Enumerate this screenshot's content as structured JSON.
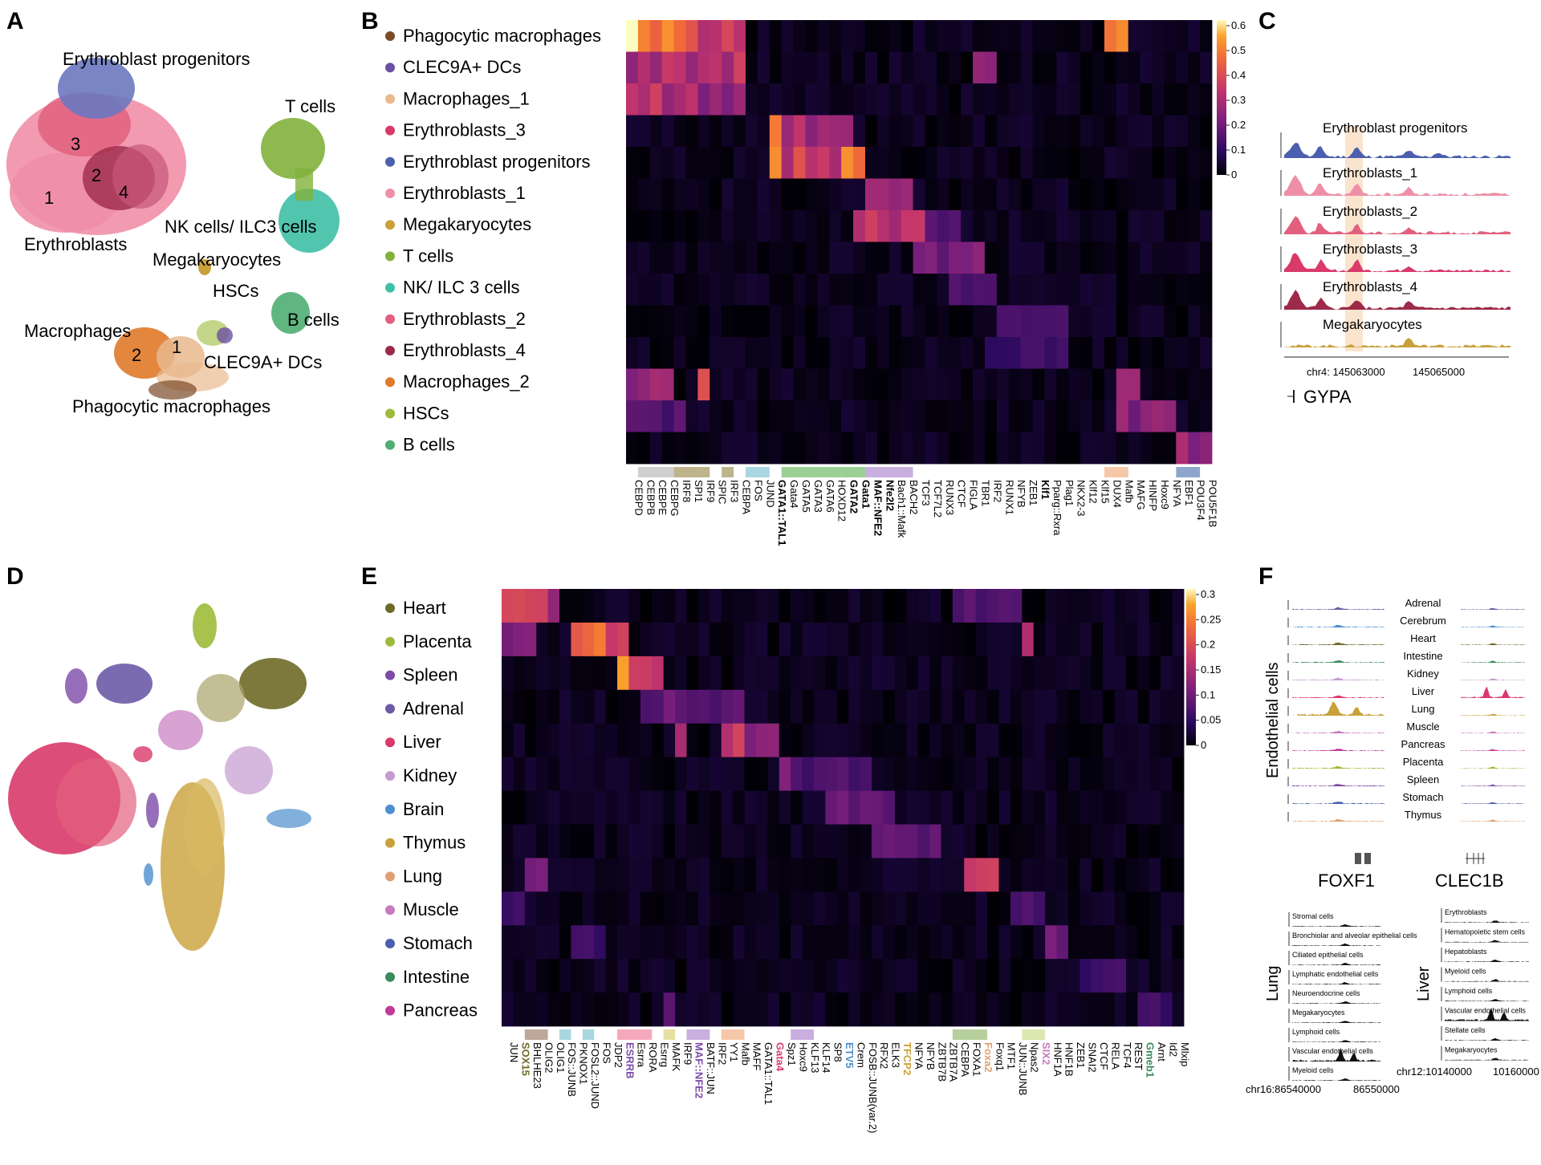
{
  "panels": {
    "A": "A",
    "B": "B",
    "C": "C",
    "D": "D",
    "E": "E",
    "F": "F"
  },
  "panelA": {
    "labels": [
      "Erythroblast progenitors",
      "T cells",
      "NK cells/ ILC3 cells",
      "Erythroblasts",
      "Megakaryocytes",
      "HSCs",
      "B cells",
      "Macrophages",
      "CLEC9A+ DCs",
      "Phagocytic macrophages"
    ],
    "numbers": [
      "3",
      "2",
      "4",
      "1",
      "2",
      "1"
    ]
  },
  "panelB": {
    "rows": [
      "Phagocytic macrophages",
      "CLEC9A+ DCs",
      "Macrophages_1",
      "Erythroblasts_3",
      "Erythroblast progenitors",
      "Erythroblasts_1",
      "Megakaryocytes",
      "T cells",
      "NK/ ILC 3 cells",
      "Erythroblasts_2",
      "Erythroblasts_4",
      "Macrophages_2",
      "HSCs",
      "B cells"
    ],
    "row_colors": [
      "#7b4a28",
      "#6b4fa0",
      "#e9b98e",
      "#d93a6a",
      "#4b5fae",
      "#ef8fa7",
      "#c9a13a",
      "#82b13c",
      "#3fbfa6",
      "#e2607e",
      "#9c2a48",
      "#e07a2a",
      "#9dbb3a",
      "#4fae72"
    ],
    "genes": [
      "CEBPD",
      "CEBPB",
      "CEBPE",
      "CEBPG",
      "IRF8",
      "SPI1",
      "IRF9",
      "SPIC",
      "IRF3",
      "CEBPA",
      "FOS",
      "JUND",
      "GATA1::TAL1",
      "Gata4",
      "GATA5",
      "GATA3",
      "GATA6",
      "HOXD12",
      "GATA2",
      "Gata1",
      "MAF::NFE2",
      "Nfe2l2",
      "Bach1::Mafk",
      "BACH2",
      "TCF3",
      "TCF7L2",
      "RUNX3",
      "CTCF",
      "FIGLA",
      "TBR1",
      "IRF2",
      "RUNX1",
      "NFYB",
      "ZEB1",
      "Klf1",
      "Pparg::Rxra",
      "Plag1",
      "NKX2-3",
      "Klf12",
      "Klf15",
      "DUX4",
      "Mafb",
      "MAFG",
      "HINFP",
      "Hoxc9",
      "NFYA",
      "EBF1",
      "POU3F4",
      "POU5F1B"
    ],
    "bold_genes": [
      "GATA1::TAL1",
      "GATA2",
      "Gata1",
      "MAF::NFE2",
      "Nfe2l2",
      "Klf1"
    ],
    "group_bar_colors": [
      "#d0d0d0",
      "#bdb48c",
      "#bdb48c",
      "#bdb48c",
      "#a9d6e0",
      "#9ccf94",
      "#9ccf94",
      "#c9aee0",
      "#f6c7a8",
      "#8fa6cc"
    ],
    "colorbar": {
      "ticks": [
        "0.6",
        "0.5",
        "0.4",
        "0.3",
        "0.2",
        "0.1",
        "0"
      ]
    }
  },
  "panelC": {
    "tracks": [
      "Erythroblast progenitors",
      "Erythroblasts_1",
      "Erythroblasts_2",
      "Erythroblasts_3",
      "Erythroblasts_4",
      "Megakaryocytes"
    ],
    "track_colors": [
      "#4b5fae",
      "#ef8fa7",
      "#e2607e",
      "#d93a6a",
      "#9c2a48",
      "#c9a13a"
    ],
    "axis": [
      "chr4: 145063000",
      "145065000"
    ],
    "gene": "GYPA"
  },
  "panelE": {
    "rows": [
      "Heart",
      "Placenta",
      "Spleen",
      "Adrenal",
      "Liver",
      "Kidney",
      "Brain",
      "Thymus",
      "Lung",
      "Muscle",
      "Stomach",
      "Intestine",
      "Pancreas"
    ],
    "row_colors": [
      "#6f6a28",
      "#9dbb3a",
      "#7d4aa8",
      "#6b5ba8",
      "#d93a6a",
      "#c49ad0",
      "#4d8fcf",
      "#c9a13a",
      "#e0a070",
      "#c77ac0",
      "#4b5fae",
      "#3a8a5a",
      "#c23a98"
    ],
    "genes": [
      "JUN",
      "SOX15",
      "BHLHE23",
      "OLIG2",
      "OLIG1",
      "FOS::JUNB",
      "PKNOX1",
      "FOSL2::JUND",
      "FOS",
      "JDP2",
      "ESRRB",
      "Esrra",
      "RORA",
      "Esrrg",
      "MAFK",
      "IRF9",
      "MAF::NFE2",
      "BATF::JUN",
      "IRF2",
      "YY1",
      "Mafb",
      "MAFF",
      "GATA1::TAL1",
      "Gata4",
      "Spz1",
      "Hoxc9",
      "KLF13",
      "KLF14",
      "SP8",
      "ETV5",
      "Crem",
      "FOSB::JUNB(var.2)",
      "RFX2",
      "ELK3",
      "TFCP2",
      "NFYA",
      "NFYB",
      "ZBTB7B",
      "ZBTB7A",
      "CEBPA",
      "FOXA1",
      "Foxa2",
      "Foxq1",
      "MTF1",
      "JUN::JUNB",
      "Npas2",
      "SIX2",
      "HNF1A",
      "HNF1B",
      "ZEB1",
      "SNAI2",
      "CTCF",
      "RELA",
      "TCF4",
      "REST",
      "Gmeb1",
      "Arnt",
      "Id2",
      "Mlxip"
    ],
    "gene_colors": {
      "SOX15": "#6f6a28",
      "ESRRB": "#7d4aa8",
      "MAF::NFE2": "#7d4aa8",
      "Gata4": "#d93a6a",
      "ETV5": "#4d8fcf",
      "TFCP2": "#c9a13a",
      "Foxa2": "#e0a070",
      "SIX2": "#c77ac0",
      "Gmeb1": "#3a8a5a"
    },
    "bold_genes": [
      "SOX15",
      "ESRRB",
      "MAF::NFE2",
      "Gata4",
      "ETV5",
      "TFCP2",
      "Foxa2",
      "SIX2",
      "Gmeb1"
    ],
    "group_bar_colors": [
      "#bda89a",
      "#a9d6e0",
      "#a9d6e0",
      "#f5a8bc",
      "#e6e0a0",
      "#c9aee0",
      "#f6c7a8",
      "#c9aee0",
      "#b7cf9c",
      "#dbe8b0"
    ],
    "colorbar": {
      "ticks": [
        "0.3",
        "0.25",
        "0.2",
        "0.15",
        "0.1",
        "0.05",
        "0"
      ]
    }
  },
  "panelF": {
    "side_label": "Endothelial cells",
    "tissues": [
      "Adrenal",
      "Cerebrum",
      "Heart",
      "Intestine",
      "Kidney",
      "Liver",
      "Lung",
      "Muscle",
      "Pancreas",
      "Placenta",
      "Spleen",
      "Stomach",
      "Thymus"
    ],
    "tissue_colors": [
      "#6b5ba8",
      "#4d8fcf",
      "#6f6a28",
      "#3a8a5a",
      "#c49ad0",
      "#d93a6a",
      "#c9a13a",
      "#c77ac0",
      "#c23a98",
      "#9dbb3a",
      "#7d4aa8",
      "#4b5fae",
      "#e0a070"
    ],
    "genes": [
      "FOXF1",
      "CLEC1B"
    ],
    "lung": {
      "label": "Lung",
      "tracks": [
        "Stromal cells",
        "Bronchiolar and alveolar epithelial cells",
        "Ciliated epithelial cells",
        "Lymphatic endothelial cells",
        "Neuroendocrine cells",
        "Megakaryocytes",
        "Lymphoid cells",
        "Vascular endothelial cells",
        "Myeloid cells"
      ],
      "axis": "chr16:86540000",
      "axis2": "86550000"
    },
    "liver": {
      "label": "Liver",
      "tracks": [
        "Erythroblasts",
        "Hematopoietic stem cells",
        "Hepatoblasts",
        "Myeloid cells",
        "Lymphoid cells",
        "Vascular endothelial cells",
        "Stellate cells",
        "Megakaryocytes"
      ],
      "axis": "chr12:10140000",
      "axis2": "10160000"
    }
  }
}
